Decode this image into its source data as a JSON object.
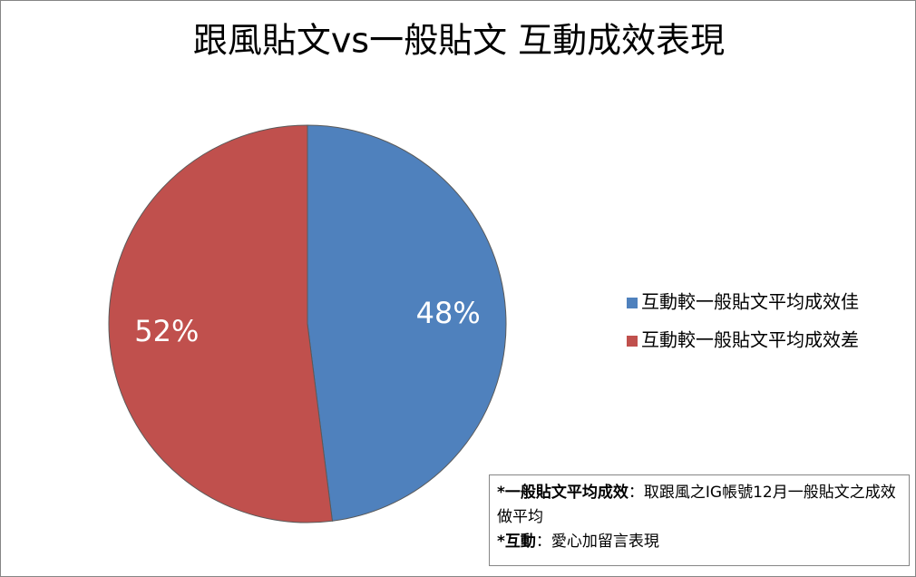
{
  "chart_data": {
    "type": "pie",
    "title": "跟風貼文vs一般貼文 互動成效表現",
    "categories": [
      "互動較一般貼文平均成效佳",
      "互動較一般貼文平均成效差"
    ],
    "values": [
      48,
      52
    ],
    "value_labels": [
      "48%",
      "52%"
    ],
    "colors": [
      "#4f81bd",
      "#c0504d"
    ],
    "legend": "right",
    "annotations": [
      {
        "label": "*一般貼文平均成效",
        "text": "：取跟風之IG帳號12月一般貼文之成效做平均"
      },
      {
        "label": "*互動",
        "text": "：愛心加留言表現"
      }
    ]
  }
}
